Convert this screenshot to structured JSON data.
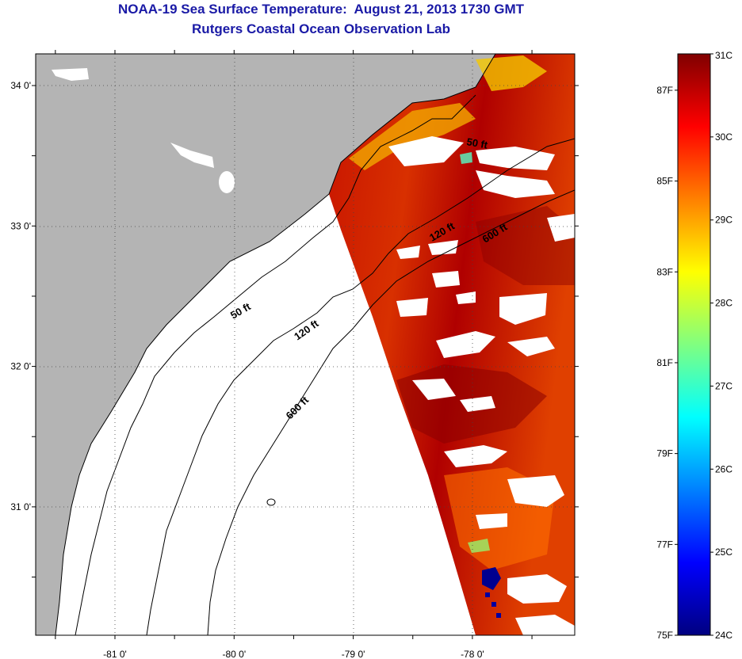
{
  "title": {
    "line1": "NOAA-19 Sea Surface Temperature:  August 21, 2013 1730 GMT",
    "line2": "Rutgers Coastal Ocean Observation Lab"
  },
  "map": {
    "lat_labels": [
      {
        "lat": 34.0,
        "label": "34 0'"
      },
      {
        "lat": 33.0,
        "label": "33 0'"
      },
      {
        "lat": 32.0,
        "label": "32 0'"
      },
      {
        "lat": 31.0,
        "label": "31 0'"
      }
    ],
    "lon_labels": [
      {
        "lon": -81.0,
        "label": "-81 0'"
      },
      {
        "lon": -80.0,
        "label": "-80 0'"
      },
      {
        "lon": -79.0,
        "label": "-79 0'"
      },
      {
        "lon": -78.0,
        "label": "-78 0'"
      }
    ],
    "contour_labels": [
      "50 ft",
      "120 ft",
      "600 ft",
      "50 ft",
      "120 ft",
      "600 ft"
    ],
    "colors": {
      "land": "#b4b4b4",
      "ocean_nodata": "#ffffff",
      "coast": "#000000"
    }
  },
  "colorbar": {
    "celsius": [
      "31C",
      "30C",
      "29C",
      "28C",
      "27C",
      "26C",
      "25C",
      "24C"
    ],
    "fahrenheit": [
      "87F",
      "85F",
      "83F",
      "81F",
      "79F",
      "77F",
      "75F"
    ],
    "range_c": [
      24,
      31
    ],
    "range_f": [
      75,
      87.8
    ],
    "colormap": [
      "#000080",
      "#0000ff",
      "#0080ff",
      "#00ffff",
      "#80ff80",
      "#ffff00",
      "#ff8000",
      "#ff0000",
      "#800000"
    ]
  }
}
